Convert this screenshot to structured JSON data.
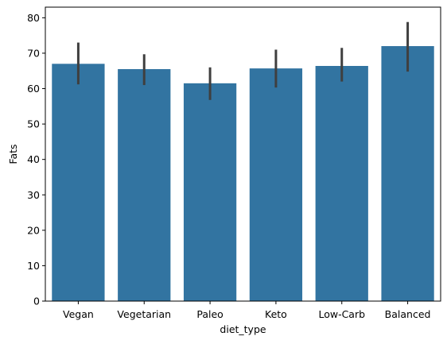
{
  "chart_data": {
    "type": "bar",
    "categories": [
      "Vegan",
      "Vegetarian",
      "Paleo",
      "Keto",
      "Low-Carb",
      "Balanced"
    ],
    "values": [
      67.0,
      65.5,
      61.5,
      65.7,
      66.4,
      72.0
    ],
    "error_low": [
      61.2,
      61.0,
      56.8,
      60.3,
      62.0,
      64.8
    ],
    "error_high": [
      73.0,
      69.7,
      66.0,
      71.0,
      71.5,
      78.8
    ],
    "xlabel": "diet_type",
    "ylabel": "Fats",
    "ylim": [
      0,
      83
    ],
    "yticks": [
      0,
      10,
      20,
      30,
      40,
      50,
      60,
      70,
      80
    ],
    "bar_color": "#3274a1",
    "error_color": "#3f3f3f",
    "grid": false,
    "legend": "none"
  }
}
